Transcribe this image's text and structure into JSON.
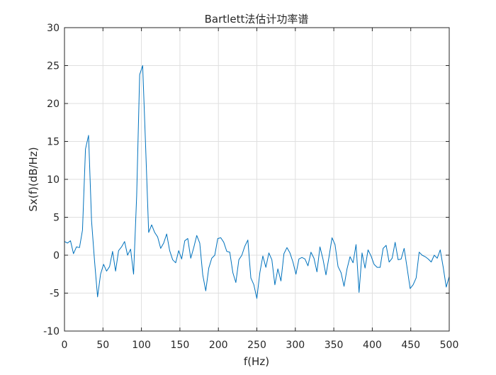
{
  "chart_data": {
    "type": "line",
    "title": "Bartlett法估计功率谱",
    "xlabel": "f(Hz)",
    "ylabel": "Sx(f)(dB/Hz)",
    "xlim": [
      0,
      500
    ],
    "ylim": [
      -10,
      30
    ],
    "xticks": [
      0,
      50,
      100,
      150,
      200,
      250,
      300,
      350,
      400,
      450,
      500
    ],
    "yticks": [
      -10,
      -5,
      0,
      5,
      10,
      15,
      20,
      25,
      30
    ],
    "xtick_labels": [
      "0",
      "50",
      "100",
      "150",
      "200",
      "250",
      "300",
      "350",
      "400",
      "450",
      "500"
    ],
    "ytick_labels": [
      "-10",
      "-5",
      "0",
      "5",
      "10",
      "15",
      "20",
      "25",
      "30"
    ],
    "grid": true,
    "line_color": "#0072BD",
    "series": [
      {
        "x": [
          0,
          3.9,
          7.8,
          11.7,
          15.6,
          19.5,
          23.4,
          27.3,
          31.3,
          35.2,
          39.1,
          43.0,
          46.9,
          50.8,
          54.7,
          58.6,
          62.5,
          66.4,
          70.3,
          74.2,
          78.1,
          82.0,
          85.9,
          89.8,
          93.8,
          97.7,
          101.6,
          105.5,
          109.4,
          113.3,
          117.2,
          121.1,
          125.0,
          128.9,
          132.8,
          136.7,
          140.6,
          144.5,
          148.4,
          152.3,
          156.3,
          160.2,
          164.1,
          168.0,
          171.9,
          175.8,
          179.7,
          183.6,
          187.5,
          191.4,
          195.3,
          199.2,
          203.1,
          207.0,
          210.9,
          214.8,
          218.8,
          222.7,
          226.6,
          230.5,
          234.4,
          238.3,
          242.2,
          246.1,
          250.0,
          253.9,
          257.8,
          261.7,
          265.6,
          269.5,
          273.4,
          277.3,
          281.3,
          285.2,
          289.1,
          293.0,
          296.9,
          300.8,
          304.7,
          308.6,
          312.5,
          316.4,
          320.3,
          324.2,
          328.1,
          332.0,
          335.9,
          339.8,
          343.8,
          347.7,
          351.6,
          355.5,
          359.4,
          363.3,
          367.2,
          371.1,
          375.0,
          378.9,
          382.8,
          386.7,
          390.6,
          394.5,
          398.4,
          402.3,
          406.3,
          410.2,
          414.1,
          418.0,
          421.9,
          425.8,
          429.7,
          433.6,
          437.5,
          441.4,
          445.3,
          449.2,
          453.1,
          457.0,
          460.9,
          464.8,
          468.8,
          472.7,
          476.6,
          480.5,
          484.4,
          488.3,
          492.2,
          496.1,
          500.0
        ],
        "y": [
          1.8,
          1.6,
          1.9,
          0.2,
          1.1,
          1.0,
          3.3,
          14.0,
          15.8,
          4.5,
          -0.8,
          -5.5,
          -2.5,
          -1.2,
          -2.1,
          -1.5,
          0.5,
          -2.1,
          0.6,
          1.1,
          1.8,
          0.0,
          0.8,
          -2.5,
          7.8,
          23.8,
          25.0,
          14.2,
          3.0,
          4.0,
          3.0,
          2.4,
          0.9,
          1.6,
          2.8,
          0.6,
          -0.6,
          -1.0,
          0.6,
          -0.5,
          1.9,
          2.2,
          -0.4,
          1.0,
          2.6,
          1.6,
          -2.6,
          -4.7,
          -1.7,
          -0.4,
          0.0,
          2.2,
          2.3,
          1.7,
          0.5,
          0.4,
          -2.3,
          -3.6,
          -0.6,
          0.0,
          1.2,
          2.0,
          -3.0,
          -3.9,
          -5.7,
          -2.3,
          -0.1,
          -1.6,
          0.3,
          -0.6,
          -3.9,
          -1.8,
          -3.4,
          0.2,
          1.0,
          0.3,
          -0.9,
          -2.5,
          -0.5,
          -0.3,
          -0.5,
          -1.4,
          0.4,
          -0.4,
          -2.2,
          1.1,
          -0.5,
          -2.6,
          -0.2,
          2.3,
          1.4,
          -1.5,
          -2.3,
          -4.1,
          -1.8,
          -0.2,
          -1.0,
          1.4,
          -4.9,
          0.3,
          -1.7,
          0.7,
          -0.1,
          -1.2,
          -1.6,
          -1.6,
          0.9,
          1.3,
          -0.9,
          -0.4,
          1.7,
          -0.6,
          -0.5,
          0.9,
          -1.7,
          -4.4,
          -3.9,
          -3.0,
          0.4,
          0.0,
          -0.2,
          -0.5,
          -0.9,
          0.0,
          -0.4,
          0.7,
          -1.6,
          -4.2,
          -2.8
        ]
      }
    ]
  }
}
